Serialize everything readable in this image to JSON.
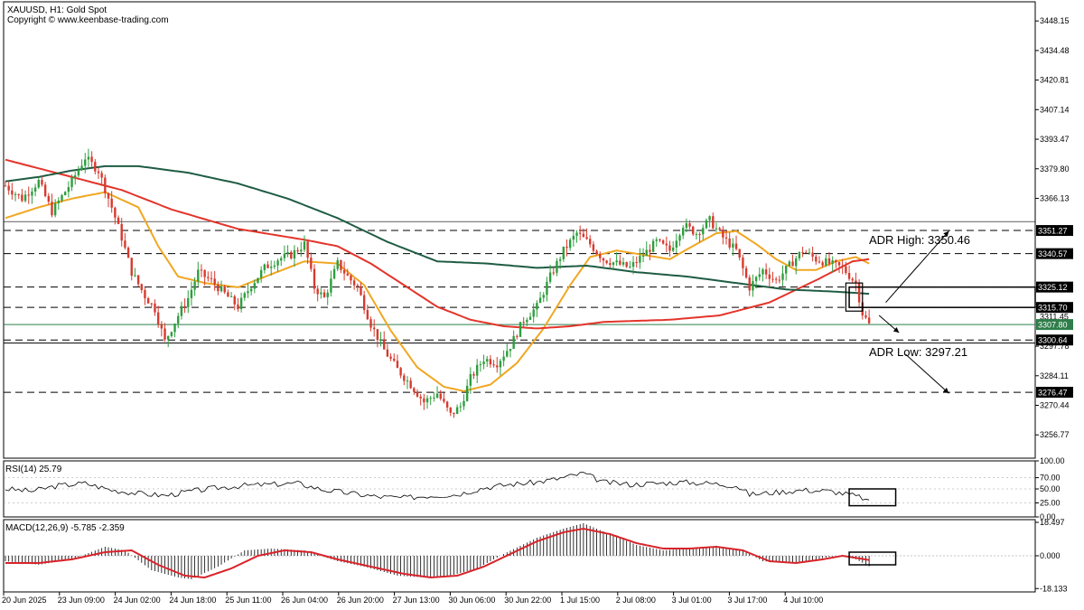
{
  "header": {
    "symbol_line": "XAUUSD, H1:  Gold Spot",
    "copyright": "Copyright © www.keenbase-trading.com"
  },
  "colors": {
    "bull_candle": "#2e9e3e",
    "bear_candle": "#d63b2f",
    "ma_fast": "#f0a722",
    "ma_mid": "#e3342a",
    "ma_slow": "#1f5c44",
    "macd_line": "#d8232a",
    "grid": "#000000"
  },
  "chart_data": [
    {
      "type": "candlestick",
      "panel": "price",
      "price_axis_ticks": [
        "3448.15",
        "3434.48",
        "3420.81",
        "3407.14",
        "3393.47",
        "3379.80",
        "3366.13",
        "3297.78",
        "3284.11",
        "3270.44",
        "3256.77"
      ],
      "ylim": [
        3246,
        3457
      ],
      "time_labels": [
        "20 Jun 2025",
        "23 Jun 09:00",
        "24 Jun 02:00",
        "24 Jun 18:00",
        "25 Jun 11:00",
        "26 Jun 04:00",
        "26 Jun 20:00",
        "27 Jun 13:00",
        "30 Jun 06:00",
        "30 Jun 22:00",
        "1 Jul 15:00",
        "2 Jul 08:00",
        "3 Jul 01:00",
        "3 Jul 17:00",
        "4 Jul 10:00"
      ],
      "close_path": [
        [
          0,
          3372
        ],
        [
          5,
          3366
        ],
        [
          10,
          3374
        ],
        [
          14,
          3360
        ],
        [
          20,
          3374
        ],
        [
          24,
          3385
        ],
        [
          28,
          3379
        ],
        [
          32,
          3362
        ],
        [
          35,
          3348
        ],
        [
          38,
          3332
        ],
        [
          42,
          3321
        ],
        [
          45,
          3315
        ],
        [
          48,
          3300
        ],
        [
          52,
          3312
        ],
        [
          55,
          3320
        ],
        [
          58,
          3332
        ],
        [
          62,
          3328
        ],
        [
          66,
          3322
        ],
        [
          70,
          3316
        ],
        [
          74,
          3326
        ],
        [
          78,
          3334
        ],
        [
          82,
          3338
        ],
        [
          86,
          3340
        ],
        [
          90,
          3345
        ],
        [
          93,
          3325
        ],
        [
          96,
          3320
        ],
        [
          100,
          3336
        ],
        [
          103,
          3330
        ],
        [
          106,
          3325
        ],
        [
          110,
          3308
        ],
        [
          114,
          3296
        ],
        [
          118,
          3287
        ],
        [
          122,
          3280
        ],
        [
          126,
          3272
        ],
        [
          130,
          3276
        ],
        [
          134,
          3266
        ],
        [
          137,
          3270
        ],
        [
          140,
          3283
        ],
        [
          144,
          3292
        ],
        [
          148,
          3290
        ],
        [
          152,
          3298
        ],
        [
          156,
          3310
        ],
        [
          160,
          3316
        ],
        [
          164,
          3330
        ],
        [
          168,
          3342
        ],
        [
          172,
          3350
        ],
        [
          176,
          3345
        ],
        [
          180,
          3338
        ],
        [
          184,
          3336
        ],
        [
          188,
          3334
        ],
        [
          192,
          3340
        ],
        [
          196,
          3346
        ],
        [
          200,
          3342
        ],
        [
          204,
          3354
        ],
        [
          208,
          3350
        ],
        [
          212,
          3356
        ],
        [
          216,
          3348
        ],
        [
          220,
          3342
        ],
        [
          224,
          3325
        ],
        [
          228,
          3333
        ],
        [
          232,
          3328
        ],
        [
          236,
          3335
        ],
        [
          240,
          3342
        ],
        [
          244,
          3338
        ],
        [
          248,
          3336
        ],
        [
          252,
          3334
        ],
        [
          256,
          3327
        ],
        [
          258,
          3313
        ],
        [
          260,
          3307.8
        ]
      ],
      "price_levels": [
        {
          "label": "3351.27",
          "value": 3351.27,
          "style": "dashed"
        },
        {
          "label": "3340.57",
          "value": 3340.57,
          "style": "dashed"
        },
        {
          "label": "3325.12",
          "value": 3325.12,
          "style": "dashed"
        },
        {
          "label": "3315.70",
          "value": 3315.7,
          "style": "dashed"
        },
        {
          "label": "3311.45",
          "value": 3311.45,
          "style": "none"
        },
        {
          "label": "3307.80",
          "value": 3307.8,
          "style": "current"
        },
        {
          "label": "3300.64",
          "value": 3300.64,
          "style": "dashed"
        },
        {
          "label": "3276.47",
          "value": 3276.47,
          "style": "dashed"
        }
      ],
      "moving_averages": [
        {
          "role": "fast",
          "path": [
            [
              0,
              3357
            ],
            [
              10,
              3362
            ],
            [
              20,
              3366
            ],
            [
              30,
              3369
            ],
            [
              40,
              3362
            ],
            [
              46,
              3344
            ],
            [
              52,
              3330
            ],
            [
              60,
              3327
            ],
            [
              70,
              3325
            ],
            [
              80,
              3331
            ],
            [
              90,
              3337
            ],
            [
              100,
              3336
            ],
            [
              108,
              3326
            ],
            [
              116,
              3305
            ],
            [
              124,
              3288
            ],
            [
              132,
              3279
            ],
            [
              138,
              3277
            ],
            [
              146,
              3280
            ],
            [
              154,
              3290
            ],
            [
              162,
              3306
            ],
            [
              170,
              3326
            ],
            [
              176,
              3339
            ],
            [
              184,
              3342
            ],
            [
              192,
              3340
            ],
            [
              200,
              3338
            ],
            [
              208,
              3345
            ],
            [
              214,
              3350
            ],
            [
              220,
              3351
            ],
            [
              226,
              3345
            ],
            [
              232,
              3338
            ],
            [
              238,
              3333
            ],
            [
              244,
              3333
            ],
            [
              250,
              3337
            ],
            [
              256,
              3339
            ],
            [
              260,
              3336
            ]
          ]
        },
        {
          "role": "mid",
          "path": [
            [
              0,
              3384
            ],
            [
              10,
              3380
            ],
            [
              20,
              3376
            ],
            [
              35,
              3370
            ],
            [
              50,
              3361
            ],
            [
              70,
              3352
            ],
            [
              90,
              3347
            ],
            [
              100,
              3344
            ],
            [
              110,
              3336
            ],
            [
              120,
              3326
            ],
            [
              130,
              3316
            ],
            [
              140,
              3310
            ],
            [
              150,
              3307
            ],
            [
              160,
              3306
            ],
            [
              170,
              3307
            ],
            [
              180,
              3309
            ],
            [
              200,
              3310
            ],
            [
              215,
              3312
            ],
            [
              230,
              3318
            ],
            [
              245,
              3329
            ],
            [
              255,
              3337
            ],
            [
              260,
              3338
            ]
          ]
        },
        {
          "role": "slow",
          "path": [
            [
              0,
              3374
            ],
            [
              10,
              3376
            ],
            [
              20,
              3379
            ],
            [
              30,
              3381
            ],
            [
              40,
              3381
            ],
            [
              55,
              3378
            ],
            [
              70,
              3373
            ],
            [
              85,
              3366
            ],
            [
              100,
              3357
            ],
            [
              115,
              3346
            ],
            [
              130,
              3337
            ],
            [
              145,
              3336
            ],
            [
              160,
              3334
            ],
            [
              175,
              3335
            ],
            [
              190,
              3332
            ],
            [
              205,
              3330
            ],
            [
              220,
              3327
            ],
            [
              235,
              3324
            ],
            [
              250,
              3323
            ],
            [
              260,
              3322
            ]
          ]
        }
      ],
      "annotations": [
        {
          "text": "ADR High: 3350.46",
          "value": 3350.46
        },
        {
          "text": "ADR Low: 3297.21",
          "value": 3297.21
        }
      ],
      "highlight_box": {
        "start": 254,
        "end": 310,
        "top": 3325.1,
        "bottom": 3315.7
      },
      "arrows": [
        {
          "from_bar": 265,
          "from_value": 3318,
          "to_bar": 284,
          "to_value": 3351
        },
        {
          "from_bar": 263,
          "from_value": 3312,
          "to_bar": 269,
          "to_value": 3304
        },
        {
          "from_bar": 271,
          "from_value": 3294,
          "to_bar": 284,
          "to_value": 3276
        }
      ]
    },
    {
      "type": "line",
      "panel": "rsi",
      "title": "RSI(14) 25.79",
      "axis_ticks": [
        "100.00",
        "70.00",
        "50.00",
        "25.00",
        "0.00"
      ],
      "ylim": [
        0,
        100
      ],
      "path": [
        [
          0,
          50
        ],
        [
          8,
          46
        ],
        [
          16,
          56
        ],
        [
          24,
          60
        ],
        [
          32,
          48
        ],
        [
          40,
          42
        ],
        [
          48,
          38
        ],
        [
          56,
          46
        ],
        [
          64,
          52
        ],
        [
          72,
          56
        ],
        [
          80,
          58
        ],
        [
          88,
          60
        ],
        [
          96,
          48
        ],
        [
          104,
          42
        ],
        [
          112,
          36
        ],
        [
          120,
          34
        ],
        [
          128,
          38
        ],
        [
          136,
          40
        ],
        [
          144,
          52
        ],
        [
          152,
          58
        ],
        [
          160,
          62
        ],
        [
          168,
          70
        ],
        [
          174,
          78
        ],
        [
          180,
          62
        ],
        [
          188,
          58
        ],
        [
          196,
          60
        ],
        [
          204,
          62
        ],
        [
          212,
          60
        ],
        [
          220,
          56
        ],
        [
          224,
          40
        ],
        [
          232,
          44
        ],
        [
          240,
          48
        ],
        [
          248,
          46
        ],
        [
          254,
          40
        ],
        [
          258,
          34
        ],
        [
          260,
          25.79
        ]
      ],
      "highlight_box": {
        "start": 254,
        "end": 268,
        "top": 50,
        "bottom": 20
      }
    },
    {
      "type": "bar+line",
      "panel": "macd",
      "title": "MACD(12,26,9) -5.785 -2.359",
      "axis_ticks": [
        "18.497",
        "0.000",
        "-18.133"
      ],
      "ylim": [
        -20,
        20
      ],
      "histogram_path": [
        [
          0,
          -3
        ],
        [
          10,
          -5
        ],
        [
          20,
          -2
        ],
        [
          30,
          5
        ],
        [
          36,
          3
        ],
        [
          44,
          -8
        ],
        [
          52,
          -12
        ],
        [
          56,
          -13
        ],
        [
          64,
          -6
        ],
        [
          72,
          3
        ],
        [
          80,
          4
        ],
        [
          90,
          3
        ],
        [
          100,
          -3
        ],
        [
          108,
          -6
        ],
        [
          118,
          -11
        ],
        [
          126,
          -12
        ],
        [
          134,
          -11
        ],
        [
          142,
          -7
        ],
        [
          150,
          1
        ],
        [
          160,
          10
        ],
        [
          168,
          15
        ],
        [
          174,
          18
        ],
        [
          182,
          12
        ],
        [
          190,
          6
        ],
        [
          198,
          3
        ],
        [
          206,
          4
        ],
        [
          214,
          5
        ],
        [
          222,
          3
        ],
        [
          228,
          -3
        ],
        [
          236,
          -4
        ],
        [
          244,
          -2
        ],
        [
          250,
          0
        ],
        [
          255,
          -1
        ],
        [
          260,
          -5.785
        ]
      ],
      "signal_path": [
        [
          0,
          -4
        ],
        [
          10,
          -4
        ],
        [
          20,
          -2
        ],
        [
          30,
          2
        ],
        [
          38,
          3
        ],
        [
          46,
          -5
        ],
        [
          54,
          -11
        ],
        [
          60,
          -12
        ],
        [
          68,
          -7
        ],
        [
          76,
          0
        ],
        [
          84,
          3
        ],
        [
          92,
          2
        ],
        [
          100,
          -2
        ],
        [
          110,
          -6
        ],
        [
          120,
          -10
        ],
        [
          128,
          -12
        ],
        [
          136,
          -11
        ],
        [
          144,
          -6
        ],
        [
          152,
          1
        ],
        [
          160,
          8
        ],
        [
          168,
          13
        ],
        [
          174,
          15
        ],
        [
          182,
          12
        ],
        [
          190,
          7
        ],
        [
          198,
          4
        ],
        [
          206,
          4
        ],
        [
          214,
          5
        ],
        [
          222,
          3
        ],
        [
          230,
          -3
        ],
        [
          238,
          -4
        ],
        [
          246,
          -2
        ],
        [
          252,
          0
        ],
        [
          260,
          -2.359
        ]
      ],
      "highlight_box": {
        "start": 254,
        "end": 268,
        "top": 2,
        "bottom": -5
      }
    }
  ]
}
